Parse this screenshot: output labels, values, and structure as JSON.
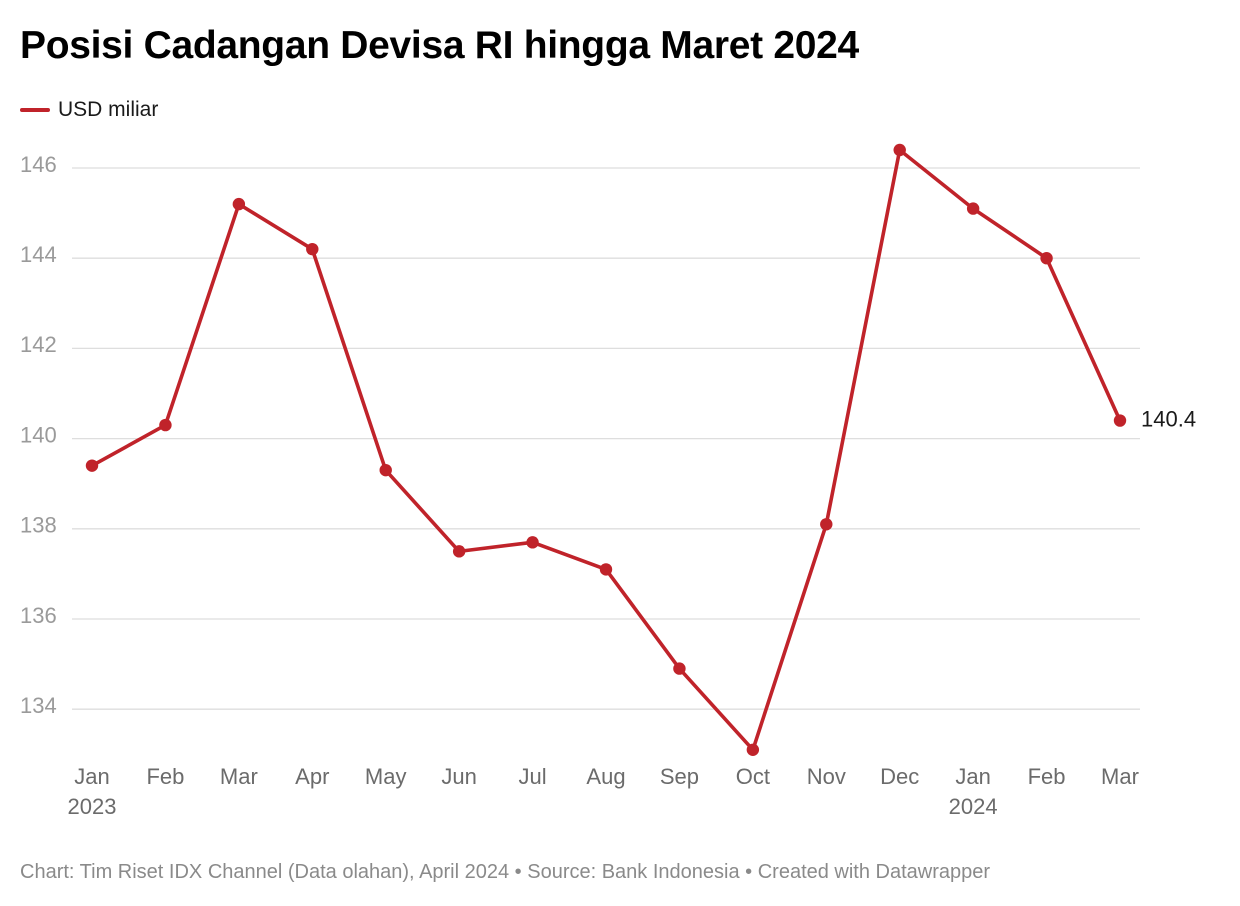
{
  "title": "Posisi Cadangan Devisa RI hingga Maret 2024",
  "legend": {
    "label": "USD miliar"
  },
  "footer": "Chart: Tim Riset IDX Channel (Data olahan), April 2024 • Source: Bank Indonesia • Created with Datawrapper",
  "colors": {
    "series": "#c0232a",
    "grid": "#dedede",
    "axis_text": "#9a9a9a"
  },
  "chart_data": {
    "type": "line",
    "title": "Posisi Cadangan Devisa RI hingga Maret 2024",
    "x": [
      "Jan",
      "Feb",
      "Mar",
      "Apr",
      "May",
      "Jun",
      "Jul",
      "Aug",
      "Sep",
      "Oct",
      "Nov",
      "Dec",
      "Jan",
      "Feb",
      "Mar"
    ],
    "x_years": [
      "2023",
      "",
      "",
      "",
      "",
      "",
      "",
      "",
      "",
      "",
      "",
      "",
      "2024",
      "",
      ""
    ],
    "series": [
      {
        "name": "USD miliar",
        "values": [
          139.4,
          140.3,
          145.2,
          144.2,
          139.3,
          137.5,
          137.7,
          137.1,
          134.9,
          133.1,
          138.1,
          146.4,
          145.1,
          144.0,
          140.4
        ]
      }
    ],
    "end_label": "140.4",
    "yticks": [
      134,
      136,
      138,
      140,
      142,
      144,
      146
    ],
    "ylim": [
      133,
      146.4
    ],
    "grid": true,
    "legend_position": "top-left"
  }
}
